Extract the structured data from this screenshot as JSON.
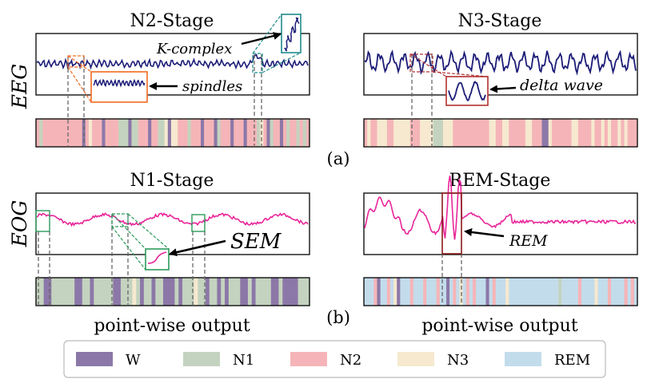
{
  "panels": {
    "n2": {
      "title": "N2-Stage",
      "kcomplex": "K-complex",
      "spindles": "spindles"
    },
    "n3": {
      "title": "N3-Stage",
      "delta": "delta wave"
    },
    "n1": {
      "title": "N1-Stage",
      "sem": "SEM"
    },
    "rem": {
      "title": "REM-Stage",
      "rem": "REM"
    }
  },
  "row_labels": {
    "eeg": "EEG",
    "eog": "EOG"
  },
  "sub_labels": {
    "a": "(a)",
    "b": "(b)"
  },
  "output_labels": {
    "left": "point-wise output",
    "right": "point-wise output"
  },
  "legend": [
    {
      "label": "W",
      "color": "#8c78a8"
    },
    {
      "label": "N1",
      "color": "#c4d3bf"
    },
    {
      "label": "N2",
      "color": "#f5b5b8"
    },
    {
      "label": "N3",
      "color": "#f6e9cf"
    },
    {
      "label": "REM",
      "color": "#c3dcec"
    }
  ],
  "colors": {
    "eeg_line": "#1c1c78",
    "eog_line": "#e8269a",
    "orange_box": "#f06a20",
    "teal_box": "#1f8a8a",
    "red_box": "#b23030",
    "green_box": "#2c9a5a"
  },
  "stage_sequences": {
    "n2": "21222222222222023222022221110112220221130332221222022201222022202221320122021221212",
    "n3": "23223332233333222333311133322222222222332233222223322200322222233222232232322323222",
    "n1": "11001111110011011111001113101101100010111311011010111001011110010000111",
    "rem": "44420442430444244424442440424342424440424443444444444444444144444244443444244442424"
  }
}
